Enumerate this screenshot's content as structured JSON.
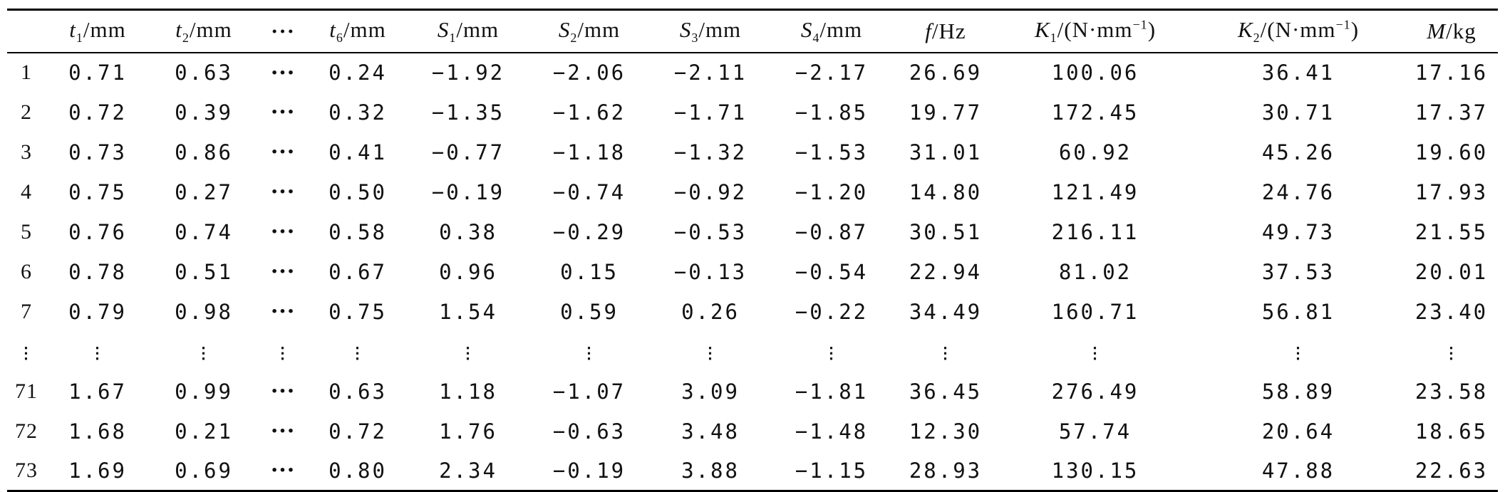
{
  "table": {
    "headers": [
      {
        "key": "row",
        "pre": "",
        "sym": "",
        "sub": "",
        "sup": "",
        "post": ""
      },
      {
        "key": "t1",
        "pre": "",
        "sym": "t",
        "sub": "1",
        "sup": "",
        "post": "/mm"
      },
      {
        "key": "t2",
        "pre": "",
        "sym": "t",
        "sub": "2",
        "sup": "",
        "post": "/mm"
      },
      {
        "key": "ellipsis",
        "pre": "···",
        "sym": "",
        "sub": "",
        "sup": "",
        "post": ""
      },
      {
        "key": "t6",
        "pre": "",
        "sym": "t",
        "sub": "6",
        "sup": "",
        "post": "/mm"
      },
      {
        "key": "S1",
        "pre": "",
        "sym": "S",
        "sub": "1",
        "sup": "",
        "post": "/mm"
      },
      {
        "key": "S2",
        "pre": "",
        "sym": "S",
        "sub": "2",
        "sup": "",
        "post": "/mm"
      },
      {
        "key": "S3",
        "pre": "",
        "sym": "S",
        "sub": "3",
        "sup": "",
        "post": "/mm"
      },
      {
        "key": "S4",
        "pre": "",
        "sym": "S",
        "sub": "4",
        "sup": "",
        "post": "/mm"
      },
      {
        "key": "f",
        "pre": "",
        "sym": "f",
        "sub": "",
        "sup": "",
        "post": "/Hz"
      },
      {
        "key": "K1",
        "pre": "",
        "sym": "K",
        "sub": "1",
        "sup": "−1",
        "post": "/(N·mm",
        "close": ")"
      },
      {
        "key": "K2",
        "pre": "",
        "sym": "K",
        "sub": "2",
        "sup": "−1",
        "post": "/(N·mm",
        "close": ")"
      },
      {
        "key": "M",
        "pre": "",
        "sym": "M",
        "sub": "",
        "sup": "",
        "post": "/kg"
      }
    ],
    "ellipsis_cell": "···",
    "vdots_cell": "⋮",
    "rows": [
      {
        "type": "data",
        "cells": [
          "1",
          "0.71",
          "0.63",
          "···",
          "0.24",
          "−1.92",
          "−2.06",
          "−2.11",
          "−2.17",
          "26.69",
          "100.06",
          "36.41",
          "17.16"
        ]
      },
      {
        "type": "data",
        "cells": [
          "2",
          "0.72",
          "0.39",
          "···",
          "0.32",
          "−1.35",
          "−1.62",
          "−1.71",
          "−1.85",
          "19.77",
          "172.45",
          "30.71",
          "17.37"
        ]
      },
      {
        "type": "data",
        "cells": [
          "3",
          "0.73",
          "0.86",
          "···",
          "0.41",
          "−0.77",
          "−1.18",
          "−1.32",
          "−1.53",
          "31.01",
          "60.92",
          "45.26",
          "19.60"
        ]
      },
      {
        "type": "data",
        "cells": [
          "4",
          "0.75",
          "0.27",
          "···",
          "0.50",
          "−0.19",
          "−0.74",
          "−0.92",
          "−1.20",
          "14.80",
          "121.49",
          "24.76",
          "17.93"
        ]
      },
      {
        "type": "data",
        "cells": [
          "5",
          "0.76",
          "0.74",
          "···",
          "0.58",
          "0.38",
          "−0.29",
          "−0.53",
          "−0.87",
          "30.51",
          "216.11",
          "49.73",
          "21.55"
        ]
      },
      {
        "type": "data",
        "cells": [
          "6",
          "0.78",
          "0.51",
          "···",
          "0.67",
          "0.96",
          "0.15",
          "−0.13",
          "−0.54",
          "22.94",
          "81.02",
          "37.53",
          "20.01"
        ]
      },
      {
        "type": "data",
        "cells": [
          "7",
          "0.79",
          "0.98",
          "···",
          "0.75",
          "1.54",
          "0.59",
          "0.26",
          "−0.22",
          "34.49",
          "160.71",
          "56.81",
          "23.40"
        ]
      },
      {
        "type": "vdots",
        "cells": [
          "⋮",
          "⋮",
          "⋮",
          "⋮",
          "⋮",
          "⋮",
          "⋮",
          "⋮",
          "⋮",
          "⋮",
          "⋮",
          "⋮",
          "⋮"
        ]
      },
      {
        "type": "data",
        "cells": [
          "71",
          "1.67",
          "0.99",
          "···",
          "0.63",
          "1.18",
          "−1.07",
          "3.09",
          "−1.81",
          "36.45",
          "276.49",
          "58.89",
          "23.58"
        ]
      },
      {
        "type": "data",
        "cells": [
          "72",
          "1.68",
          "0.21",
          "···",
          "0.72",
          "1.76",
          "−0.63",
          "3.48",
          "−1.48",
          "12.30",
          "57.74",
          "20.64",
          "18.65"
        ]
      },
      {
        "type": "data",
        "cells": [
          "73",
          "1.69",
          "0.69",
          "···",
          "0.80",
          "2.34",
          "−0.19",
          "3.88",
          "−1.15",
          "28.93",
          "130.15",
          "47.88",
          "22.63"
        ]
      }
    ]
  }
}
